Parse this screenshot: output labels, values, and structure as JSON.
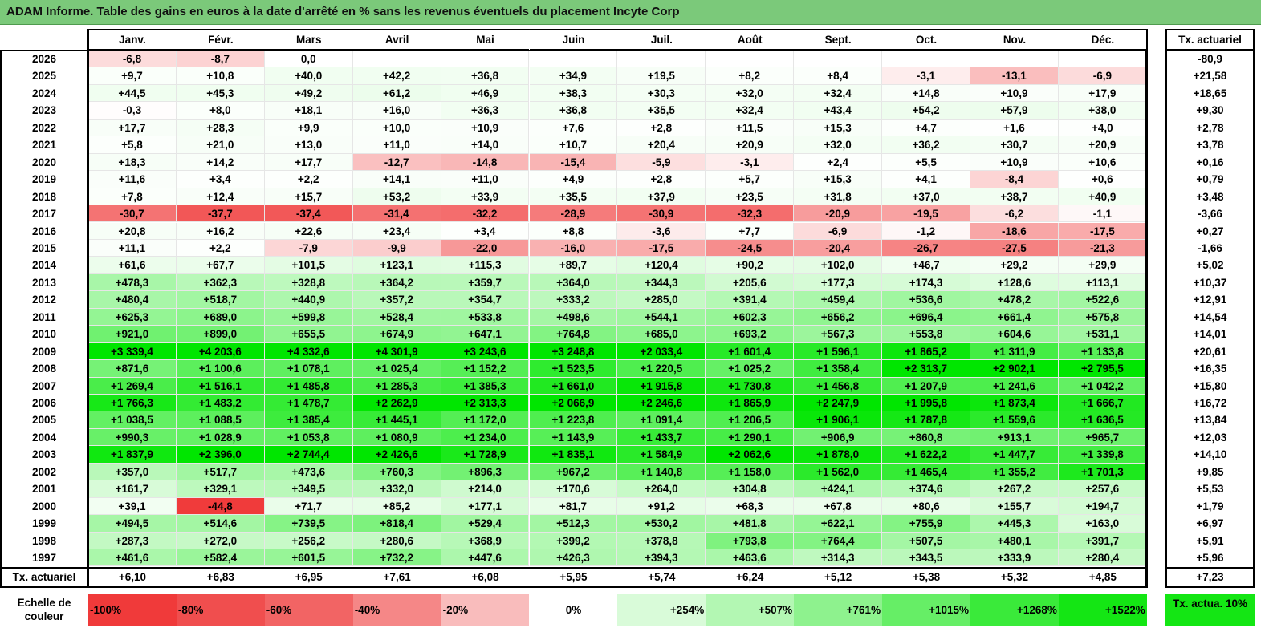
{
  "title": "ADAM Informe. Table des gains en euros à la date d'arrêté en % sans les revenus éventuels du placement Incyte Corp",
  "colors": {
    "title_bg": "#7bc97a",
    "negative_strong": "#f03a3a",
    "positive_strong": "#00e600",
    "neutral": "#ffffff"
  },
  "chart_data": {
    "type": "heatmap",
    "months": [
      "Janv.",
      "Févr.",
      "Mars",
      "Avril",
      "Mai",
      "Juin",
      "Juil.",
      "Août",
      "Sept.",
      "Oct.",
      "Nov.",
      "Déc."
    ],
    "annual_header": "Tx. actuariel",
    "rows": [
      {
        "year": "2026",
        "values": [
          -6.8,
          -8.7,
          0.0,
          null,
          null,
          null,
          null,
          null,
          null,
          null,
          null,
          null
        ],
        "labels": [
          "-6,8",
          "-8,7",
          "0,0",
          "",
          "",
          "",
          "",
          "",
          "",
          "",
          "",
          ""
        ],
        "annual": "-80,9"
      },
      {
        "year": "2025",
        "values": [
          9.7,
          10.8,
          40.0,
          42.2,
          36.8,
          34.9,
          19.5,
          8.2,
          8.4,
          -3.1,
          -13.1,
          -6.9
        ],
        "labels": [
          "+9,7",
          "+10,8",
          "+40,0",
          "+42,2",
          "+36,8",
          "+34,9",
          "+19,5",
          "+8,2",
          "+8,4",
          "-3,1",
          "-13,1",
          "-6,9"
        ],
        "annual": "+21,58"
      },
      {
        "year": "2024",
        "values": [
          44.5,
          45.3,
          49.2,
          61.2,
          46.9,
          38.3,
          30.3,
          32.0,
          32.4,
          14.8,
          10.9,
          17.9
        ],
        "labels": [
          "+44,5",
          "+45,3",
          "+49,2",
          "+61,2",
          "+46,9",
          "+38,3",
          "+30,3",
          "+32,0",
          "+32,4",
          "+14,8",
          "+10,9",
          "+17,9"
        ],
        "annual": "+18,65"
      },
      {
        "year": "2023",
        "values": [
          -0.3,
          8.0,
          18.1,
          16.0,
          36.3,
          36.8,
          35.5,
          32.4,
          43.4,
          54.2,
          57.9,
          38.0
        ],
        "labels": [
          "-0,3",
          "+8,0",
          "+18,1",
          "+16,0",
          "+36,3",
          "+36,8",
          "+35,5",
          "+32,4",
          "+43,4",
          "+54,2",
          "+57,9",
          "+38,0"
        ],
        "annual": "+9,30"
      },
      {
        "year": "2022",
        "values": [
          17.7,
          28.3,
          9.9,
          10.0,
          10.9,
          7.6,
          2.8,
          11.5,
          15.3,
          4.7,
          1.6,
          4.0
        ],
        "labels": [
          "+17,7",
          "+28,3",
          "+9,9",
          "+10,0",
          "+10,9",
          "+7,6",
          "+2,8",
          "+11,5",
          "+15,3",
          "+4,7",
          "+1,6",
          "+4,0"
        ],
        "annual": "+2,78"
      },
      {
        "year": "2021",
        "values": [
          5.8,
          21.0,
          13.0,
          11.0,
          14.0,
          10.7,
          20.4,
          20.9,
          32.0,
          36.2,
          30.7,
          20.9
        ],
        "labels": [
          "+5,8",
          "+21,0",
          "+13,0",
          "+11,0",
          "+14,0",
          "+10,7",
          "+20,4",
          "+20,9",
          "+32,0",
          "+36,2",
          "+30,7",
          "+20,9"
        ],
        "annual": "+3,78"
      },
      {
        "year": "2020",
        "values": [
          18.3,
          14.2,
          17.7,
          -12.7,
          -14.8,
          -15.4,
          -5.9,
          -3.1,
          2.4,
          5.5,
          10.9,
          10.6
        ],
        "labels": [
          "+18,3",
          "+14,2",
          "+17,7",
          "-12,7",
          "-14,8",
          "-15,4",
          "-5,9",
          "-3,1",
          "+2,4",
          "+5,5",
          "+10,9",
          "+10,6"
        ],
        "annual": "+0,16"
      },
      {
        "year": "2019",
        "values": [
          11.6,
          3.4,
          2.2,
          14.1,
          11.0,
          4.9,
          2.8,
          5.7,
          15.3,
          4.1,
          -8.4,
          0.6
        ],
        "labels": [
          "+11,6",
          "+3,4",
          "+2,2",
          "+14,1",
          "+11,0",
          "+4,9",
          "+2,8",
          "+5,7",
          "+15,3",
          "+4,1",
          "-8,4",
          "+0,6"
        ],
        "annual": "+0,79"
      },
      {
        "year": "2018",
        "values": [
          7.8,
          12.4,
          15.7,
          53.2,
          33.9,
          35.5,
          37.9,
          23.5,
          31.8,
          37.0,
          38.7,
          40.9
        ],
        "labels": [
          "+7,8",
          "+12,4",
          "+15,7",
          "+53,2",
          "+33,9",
          "+35,5",
          "+37,9",
          "+23,5",
          "+31,8",
          "+37,0",
          "+38,7",
          "+40,9"
        ],
        "annual": "+3,48"
      },
      {
        "year": "2017",
        "values": [
          -30.7,
          -37.7,
          -37.4,
          -31.4,
          -32.2,
          -28.9,
          -30.9,
          -32.3,
          -20.9,
          -19.5,
          -6.2,
          -1.1
        ],
        "labels": [
          "-30,7",
          "-37,7",
          "-37,4",
          "-31,4",
          "-32,2",
          "-28,9",
          "-30,9",
          "-32,3",
          "-20,9",
          "-19,5",
          "-6,2",
          "-1,1"
        ],
        "annual": "-3,66"
      },
      {
        "year": "2016",
        "values": [
          20.8,
          16.2,
          22.6,
          23.4,
          3.4,
          8.8,
          -3.6,
          7.7,
          -6.9,
          -1.2,
          -18.6,
          -17.5
        ],
        "labels": [
          "+20,8",
          "+16,2",
          "+22,6",
          "+23,4",
          "+3,4",
          "+8,8",
          "-3,6",
          "+7,7",
          "-6,9",
          "-1,2",
          "-18,6",
          "-17,5"
        ],
        "annual": "+0,27"
      },
      {
        "year": "2015",
        "values": [
          11.1,
          2.2,
          -7.9,
          -9.9,
          -22.0,
          -16.0,
          -17.5,
          -24.5,
          -20.4,
          -26.7,
          -27.5,
          -21.3
        ],
        "labels": [
          "+11,1",
          "+2,2",
          "-7,9",
          "-9,9",
          "-22,0",
          "-16,0",
          "-17,5",
          "-24,5",
          "-20,4",
          "-26,7",
          "-27,5",
          "-21,3"
        ],
        "annual": "-1,66"
      },
      {
        "year": "2014",
        "values": [
          61.6,
          67.7,
          101.5,
          123.1,
          115.3,
          89.7,
          120.4,
          90.2,
          102.0,
          46.7,
          29.2,
          29.9
        ],
        "labels": [
          "+61,6",
          "+67,7",
          "+101,5",
          "+123,1",
          "+115,3",
          "+89,7",
          "+120,4",
          "+90,2",
          "+102,0",
          "+46,7",
          "+29,2",
          "+29,9"
        ],
        "annual": "+5,02"
      },
      {
        "year": "2013",
        "values": [
          478.3,
          362.3,
          328.8,
          364.2,
          359.7,
          364.0,
          344.3,
          205.6,
          177.3,
          174.3,
          128.6,
          113.1
        ],
        "labels": [
          "+478,3",
          "+362,3",
          "+328,8",
          "+364,2",
          "+359,7",
          "+364,0",
          "+344,3",
          "+205,6",
          "+177,3",
          "+174,3",
          "+128,6",
          "+113,1"
        ],
        "annual": "+10,37"
      },
      {
        "year": "2012",
        "values": [
          480.4,
          518.7,
          440.9,
          357.2,
          354.7,
          333.2,
          285.0,
          391.4,
          459.4,
          536.6,
          478.2,
          522.6
        ],
        "labels": [
          "+480,4",
          "+518,7",
          "+440,9",
          "+357,2",
          "+354,7",
          "+333,2",
          "+285,0",
          "+391,4",
          "+459,4",
          "+536,6",
          "+478,2",
          "+522,6"
        ],
        "annual": "+12,91"
      },
      {
        "year": "2011",
        "values": [
          625.3,
          689.0,
          599.8,
          528.4,
          533.8,
          498.6,
          544.1,
          602.3,
          656.2,
          696.4,
          661.4,
          575.8
        ],
        "labels": [
          "+625,3",
          "+689,0",
          "+599,8",
          "+528,4",
          "+533,8",
          "+498,6",
          "+544,1",
          "+602,3",
          "+656,2",
          "+696,4",
          "+661,4",
          "+575,8"
        ],
        "annual": "+14,54"
      },
      {
        "year": "2010",
        "values": [
          921.0,
          899.0,
          655.5,
          674.9,
          647.1,
          764.8,
          685.0,
          693.2,
          567.3,
          553.8,
          604.6,
          531.1
        ],
        "labels": [
          "+921,0",
          "+899,0",
          "+655,5",
          "+674,9",
          "+647,1",
          "+764,8",
          "+685,0",
          "+693,2",
          "+567,3",
          "+553,8",
          "+604,6",
          "+531,1"
        ],
        "annual": "+14,01"
      },
      {
        "year": "2009",
        "values": [
          3339.4,
          4203.6,
          4332.6,
          4301.9,
          3243.6,
          3248.8,
          2033.4,
          1601.4,
          1596.1,
          1865.2,
          1311.9,
          1133.8
        ],
        "labels": [
          "+3 339,4",
          "+4 203,6",
          "+4 332,6",
          "+4 301,9",
          "+3 243,6",
          "+3 248,8",
          "+2 033,4",
          "+1 601,4",
          "+1 596,1",
          "+1 865,2",
          "+1 311,9",
          "+1 133,8"
        ],
        "annual": "+20,61"
      },
      {
        "year": "2008",
        "values": [
          871.6,
          1100.6,
          1078.1,
          1025.4,
          1152.2,
          1523.5,
          1220.5,
          1025.2,
          1358.4,
          2313.7,
          2902.1,
          2795.5
        ],
        "labels": [
          "+871,6",
          "+1 100,6",
          "+1 078,1",
          "+1 025,4",
          "+1 152,2",
          "+1 523,5",
          "+1 220,5",
          "+1 025,2",
          "+1 358,4",
          "+2 313,7",
          "+2 902,1",
          "+2 795,5"
        ],
        "annual": "+16,35"
      },
      {
        "year": "2007",
        "values": [
          1269.4,
          1516.1,
          1485.8,
          1285.3,
          1385.3,
          1661.0,
          1915.8,
          1730.8,
          1456.8,
          1207.9,
          1241.6,
          1042.2
        ],
        "labels": [
          "+1 269,4",
          "+1 516,1",
          "+1 485,8",
          "+1 285,3",
          "+1 385,3",
          "+1 661,0",
          "+1 915,8",
          "+1 730,8",
          "+1 456,8",
          "+1 207,9",
          "+1 241,6",
          "+1 042,2"
        ],
        "annual": "+15,80"
      },
      {
        "year": "2006",
        "values": [
          1766.3,
          1483.2,
          1478.7,
          2262.9,
          2313.3,
          2066.9,
          2246.6,
          1865.9,
          2247.9,
          1995.8,
          1873.4,
          1666.7
        ],
        "labels": [
          "+1 766,3",
          "+1 483,2",
          "+1 478,7",
          "+2 262,9",
          "+2 313,3",
          "+2 066,9",
          "+2 246,6",
          "+1 865,9",
          "+2 247,9",
          "+1 995,8",
          "+1 873,4",
          "+1 666,7"
        ],
        "annual": "+16,72"
      },
      {
        "year": "2005",
        "values": [
          1038.5,
          1088.5,
          1385.4,
          1445.1,
          1172.0,
          1223.8,
          1091.4,
          1206.5,
          1906.1,
          1787.8,
          1559.6,
          1636.5
        ],
        "labels": [
          "+1 038,5",
          "+1 088,5",
          "+1 385,4",
          "+1 445,1",
          "+1 172,0",
          "+1 223,8",
          "+1 091,4",
          "+1 206,5",
          "+1 906,1",
          "+1 787,8",
          "+1 559,6",
          "+1 636,5"
        ],
        "annual": "+13,84"
      },
      {
        "year": "2004",
        "values": [
          990.3,
          1028.9,
          1053.8,
          1080.9,
          1234.0,
          1143.9,
          1433.7,
          1290.1,
          906.9,
          860.8,
          913.1,
          965.7
        ],
        "labels": [
          "+990,3",
          "+1 028,9",
          "+1 053,8",
          "+1 080,9",
          "+1 234,0",
          "+1 143,9",
          "+1 433,7",
          "+1 290,1",
          "+906,9",
          "+860,8",
          "+913,1",
          "+965,7"
        ],
        "annual": "+12,03"
      },
      {
        "year": "2003",
        "values": [
          1837.9,
          2396.0,
          2744.4,
          2426.6,
          1728.9,
          1835.1,
          1584.9,
          2062.6,
          1878.0,
          1622.2,
          1447.7,
          1339.8
        ],
        "labels": [
          "+1 837,9",
          "+2 396,0",
          "+2 744,4",
          "+2 426,6",
          "+1 728,9",
          "+1 835,1",
          "+1 584,9",
          "+2 062,6",
          "+1 878,0",
          "+1 622,2",
          "+1 447,7",
          "+1 339,8"
        ],
        "annual": "+14,10"
      },
      {
        "year": "2002",
        "values": [
          357.0,
          517.7,
          473.6,
          760.3,
          896.3,
          967.2,
          1140.8,
          1158.0,
          1562.0,
          1465.4,
          1355.2,
          1701.3
        ],
        "labels": [
          "+357,0",
          "+517,7",
          "+473,6",
          "+760,3",
          "+896,3",
          "+967,2",
          "+1 140,8",
          "+1 158,0",
          "+1 562,0",
          "+1 465,4",
          "+1 355,2",
          "+1 701,3"
        ],
        "annual": "+9,85"
      },
      {
        "year": "2001",
        "values": [
          161.7,
          329.1,
          349.5,
          332.0,
          214.0,
          170.6,
          264.0,
          304.8,
          424.1,
          374.6,
          267.2,
          257.6
        ],
        "labels": [
          "+161,7",
          "+329,1",
          "+349,5",
          "+332,0",
          "+214,0",
          "+170,6",
          "+264,0",
          "+304,8",
          "+424,1",
          "+374,6",
          "+267,2",
          "+257,6"
        ],
        "annual": "+5,53"
      },
      {
        "year": "2000",
        "values": [
          39.1,
          -44.8,
          71.7,
          85.2,
          177.1,
          81.7,
          91.2,
          68.3,
          67.8,
          80.6,
          155.7,
          194.7
        ],
        "labels": [
          "+39,1",
          "-44,8",
          "+71,7",
          "+85,2",
          "+177,1",
          "+81,7",
          "+91,2",
          "+68,3",
          "+67,8",
          "+80,6",
          "+155,7",
          "+194,7"
        ],
        "annual": "+1,79"
      },
      {
        "year": "1999",
        "values": [
          494.5,
          514.6,
          739.5,
          818.4,
          529.4,
          512.3,
          530.2,
          481.8,
          622.1,
          755.9,
          445.3,
          163.0
        ],
        "labels": [
          "+494,5",
          "+514,6",
          "+739,5",
          "+818,4",
          "+529,4",
          "+512,3",
          "+530,2",
          "+481,8",
          "+622,1",
          "+755,9",
          "+445,3",
          "+163,0"
        ],
        "annual": "+6,97"
      },
      {
        "year": "1998",
        "values": [
          287.3,
          272.0,
          256.2,
          280.6,
          368.9,
          399.2,
          378.8,
          793.8,
          764.4,
          507.5,
          480.1,
          391.7
        ],
        "labels": [
          "+287,3",
          "+272,0",
          "+256,2",
          "+280,6",
          "+368,9",
          "+399,2",
          "+378,8",
          "+793,8",
          "+764,4",
          "+507,5",
          "+480,1",
          "+391,7"
        ],
        "annual": "+5,91"
      },
      {
        "year": "1997",
        "values": [
          461.6,
          582.4,
          601.5,
          732.2,
          447.6,
          426.3,
          394.3,
          463.6,
          314.3,
          343.5,
          333.9,
          280.4
        ],
        "labels": [
          "+461,6",
          "+582,4",
          "+601,5",
          "+732,2",
          "+447,6",
          "+426,3",
          "+394,3",
          "+463,6",
          "+314,3",
          "+343,5",
          "+333,9",
          "+280,4"
        ],
        "annual": "+5,96"
      }
    ],
    "footer_row": {
      "label": "Tx. actuariel",
      "values": [
        "+6,10",
        "+6,83",
        "+6,95",
        "+7,61",
        "+6,08",
        "+5,95",
        "+5,74",
        "+6,24",
        "+5,12",
        "+5,38",
        "+5,32",
        "+4,85"
      ],
      "annual": "+7,23"
    },
    "scale": {
      "label": "Echelle de couleur",
      "stops": [
        {
          "label": "-100%",
          "color": "#f03a3a"
        },
        {
          "label": "-80%",
          "color": "#f04e4e"
        },
        {
          "label": "-60%",
          "color": "#f26464"
        },
        {
          "label": "-40%",
          "color": "#f58787"
        },
        {
          "label": "-20%",
          "color": "#f9bcbc"
        },
        {
          "label": "0%",
          "color": "#ffffff"
        },
        {
          "label": "+254%",
          "color": "#d9fbd9"
        },
        {
          "label": "+507%",
          "color": "#b3f7b3"
        },
        {
          "label": "+761%",
          "color": "#8ef28e"
        },
        {
          "label": "+1015%",
          "color": "#66ee66"
        },
        {
          "label": "+1268%",
          "color": "#3aea3a"
        },
        {
          "label": "+1522%",
          "color": "#14e614"
        }
      ],
      "annual_label": "Tx. actua. 10%",
      "annual_color": "#14e614"
    }
  }
}
